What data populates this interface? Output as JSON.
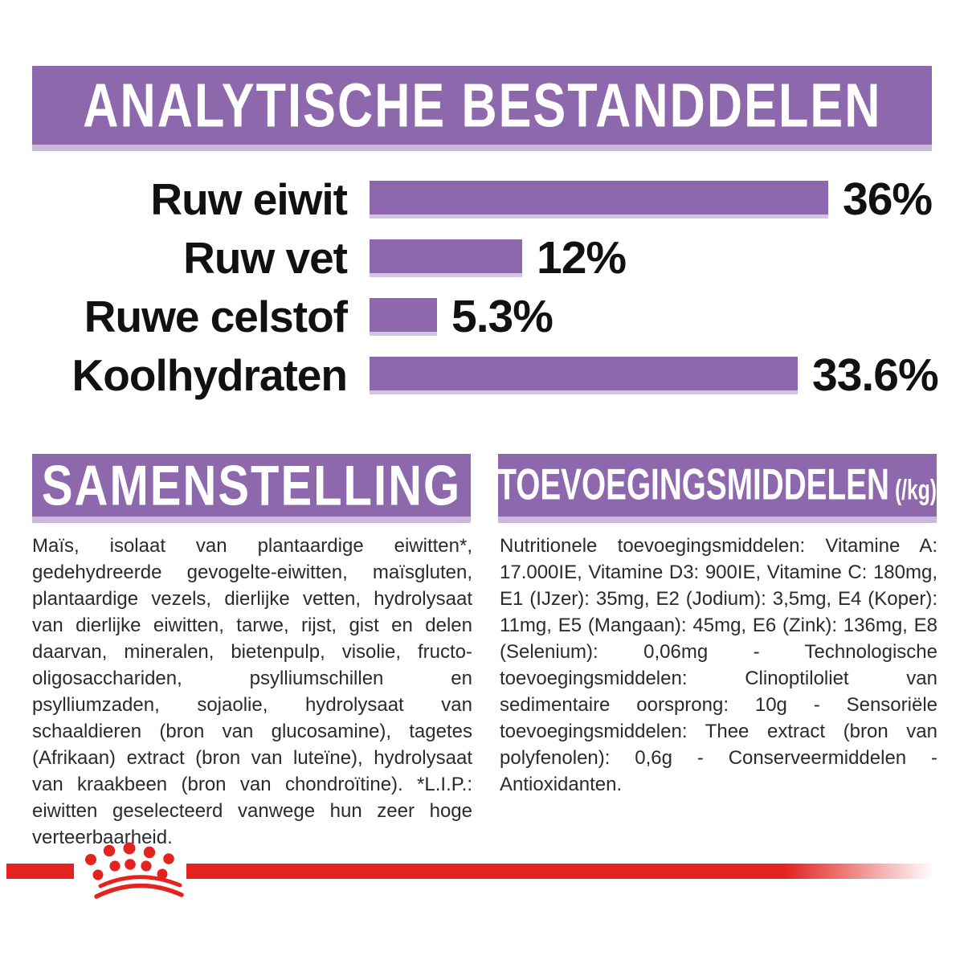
{
  "colors": {
    "purple": "#8e68ac",
    "purple_light_edge": "#cbb8da",
    "brand_red": "#e2231f",
    "text": "#2b2b2b"
  },
  "analytical": {
    "title": "ANALYTISCHE BESTANDDELEN"
  },
  "chart_data": {
    "type": "bar",
    "orientation": "horizontal",
    "title": "ANALYTISCHE BESTANDDELEN",
    "categories": [
      "Ruw eiwit",
      "Ruw vet",
      "Ruwe celstof",
      "Koolhydraten"
    ],
    "values": [
      36,
      12,
      5.3,
      33.6
    ],
    "value_labels": [
      "36%",
      "12%",
      "5.3%",
      "33.6%"
    ],
    "unit": "%",
    "xlim": [
      0,
      38
    ],
    "grid": false,
    "bar_color": "#8e68ac",
    "value_label_position": "right-of-bar"
  },
  "composition": {
    "title": "SAMENSTELLING",
    "body": "Maïs, isolaat van plantaardige eiwitten*, gedehydreerde gevogelte-eiwitten, maïsgluten, plantaardige vezels, dierlijke vetten, hydrolysaat van dierlijke eiwitten, tarwe, rijst, gist en delen daarvan, mineralen, bietenpulp, visolie, fructo-oligosacchariden, psylliumschillen en psylliumzaden, sojaolie, hydrolysaat van schaaldieren (bron van glucosamine), tagetes (Afrikaan) extract (bron van luteïne), hydrolysaat van kraakbeen (bron van chondroïtine). *L.I.P.: eiwitten geselecteerd vanwege hun zeer hoge verteerbaarheid."
  },
  "additives": {
    "title": "TOEVOEGINGSMIDDELEN",
    "unit": "(/kg)",
    "body": "Nutritionele toevoegingsmiddelen: Vitamine A: 17.000IE, Vitamine D3: 900IE, Vitamine C: 180mg, E1 (IJzer): 35mg, E2 (Jodium): 3,5mg, E4 (Koper): 11mg, E5 (Mangaan): 45mg, E6 (Zink): 136mg, E8 (Selenium): 0,06mg - Technologische toevoegingsmiddelen: Clinoptiloliet van sedimentaire oorsprong: 10g - Sensoriële toevoegingsmiddelen: Thee extract (bron van polyfenolen): 0,6g - Conserveermiddelen - Antioxidanten."
  },
  "footer": {
    "logo": "royal-canin-crown"
  }
}
